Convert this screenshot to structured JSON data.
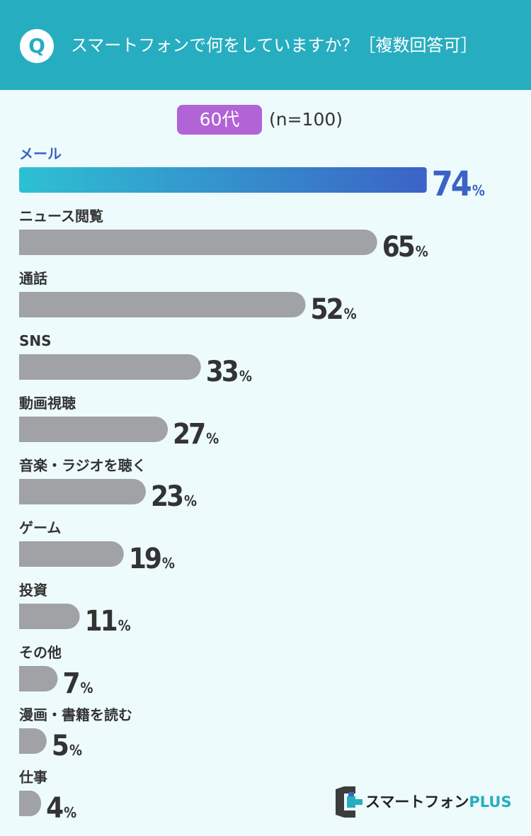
{
  "header": {
    "badge": "Q",
    "question": "スマートフォンで何をしていますか？［複数回答可］"
  },
  "subheader": {
    "age_group": "60代",
    "sample_size": "(n=100)"
  },
  "chart_data": {
    "type": "bar",
    "orientation": "horizontal",
    "title": "スマートフォンで何をしていますか？［複数回答可］",
    "unit": "%",
    "categories": [
      "メール",
      "ニュース閲覧",
      "通話",
      "SNS",
      "動画視聴",
      "音楽・ラジオを聴く",
      "ゲーム",
      "投資",
      "その他",
      "漫画・書籍を読む",
      "仕事"
    ],
    "values": [
      74,
      65,
      52,
      33,
      27,
      23,
      19,
      11,
      7,
      5,
      4
    ],
    "highlight_index": 0,
    "colors": {
      "highlight_start": "#2ec0d2",
      "highlight_end": "#3b63c6",
      "highlight_label": "#3b63c6",
      "bar": "#a1a2a6",
      "value_text": "#333333"
    }
  },
  "logo": {
    "text_main": "スマートフォン",
    "text_plus": "PLUS"
  },
  "colors": {
    "header_bg": "#27adc0",
    "page_bg": "#eefbfc",
    "pill_bg": "#b263d6"
  }
}
